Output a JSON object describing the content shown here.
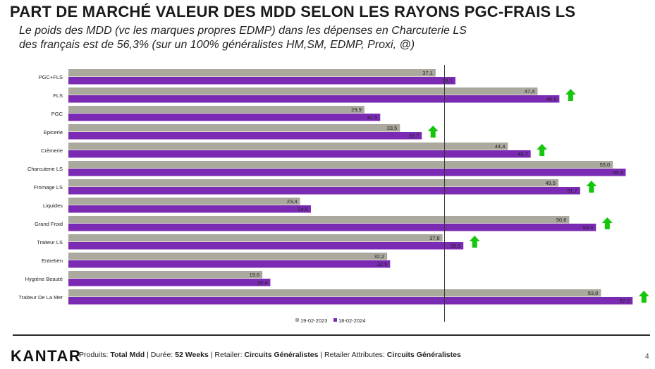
{
  "title": "PART DE MARCHÉ VALEUR DES MDD SELON LES RAYONS PGC-FRAIS LS",
  "subtitle": {
    "line1": "Le poids des MDD (vc les marques propres EDMP) dans les dépenses en Charcuterie LS",
    "line2": "des français est de 56,3% (sur un 100% généralistes HM,SM, EDMP, Proxi, @)"
  },
  "chart_data": {
    "type": "bar",
    "orientation": "horizontal",
    "categories": [
      "PGC+FLS",
      "FLS",
      "PGC",
      "Epicerie",
      "Crèmerie",
      "Charcuterie LS",
      "Fromage LS",
      "Liquides",
      "Grand Froid",
      "Traiteur LS",
      "Entretien",
      "Hygiène Beauté",
      "Traiteur De La Mer"
    ],
    "series": [
      {
        "name": "19-02-2023",
        "color": "#aba99e",
        "values": [
          37.1,
          47.4,
          29.9,
          33.5,
          44.4,
          55.0,
          49.5,
          23.4,
          50.6,
          37.8,
          32.2,
          19.6,
          53.8
        ],
        "labels": [
          "37,1",
          "47,4",
          "29,9",
          "33,5",
          "44,4",
          "55,0",
          "49,5",
          "23,4",
          "50,6",
          "37,8",
          "32,2",
          "19,6",
          "53,8"
        ]
      },
      {
        "name": "18-02-2024",
        "color": "#7b2bb3",
        "values": [
          39.1,
          49.6,
          31.5,
          35.7,
          46.7,
          56.3,
          51.7,
          24.5,
          53.3,
          39.9,
          32.5,
          20.4,
          57.0
        ],
        "labels": [
          "39,1",
          "49,6",
          "31,5",
          "35,7",
          "46,7",
          "56,3",
          "51,7",
          "24,5",
          "53,3",
          "39,9",
          "32,5",
          "20,4",
          "57,0"
        ]
      }
    ],
    "up_arrows": [
      false,
      true,
      false,
      true,
      true,
      false,
      true,
      false,
      true,
      true,
      false,
      false,
      true
    ],
    "arrow_color": "#16c60c",
    "reference_line": 38.0,
    "xlim": [
      0,
      60
    ]
  },
  "legend": [
    "19-02-2023",
    "18-02-2024"
  ],
  "footer": {
    "logo": "KANTAR",
    "produits_label": "Produits:",
    "produits_value": "Total Mdd",
    "duree_label": "Durée:",
    "duree_value": "52 Weeks",
    "retailer_label": "Retailer:",
    "retailer_value": "Circuits Généralistes",
    "attr_label": "Retailer Attributes:",
    "attr_value": "Circuits Généralistes",
    "page": "4"
  }
}
